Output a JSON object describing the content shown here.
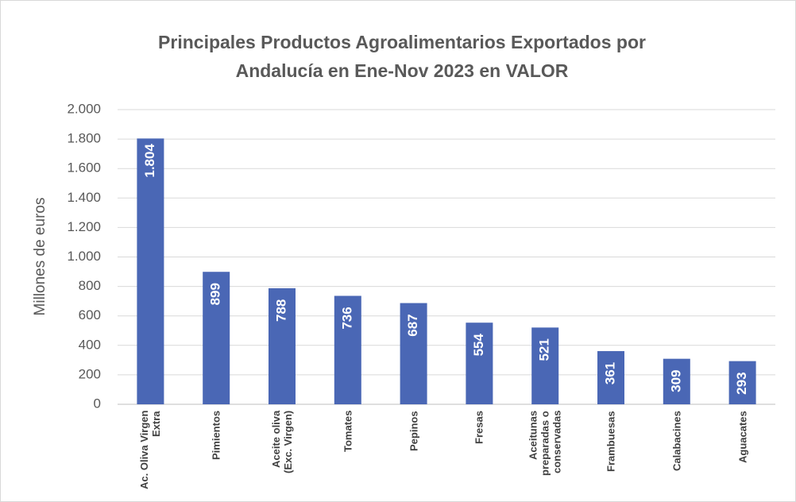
{
  "chart_data": {
    "type": "bar",
    "title": "Principales Productos Agroalimentarios Exportados por Andalucía en Ene-Nov 2023 en VALOR",
    "y_label": "Millones de euros",
    "categories": [
      "Ac. Oliva Virgen Extra",
      "Pimientos",
      "Aceite oliva (Exc. Virgen)",
      "Tomates",
      "Pepinos",
      "Fresas",
      "Aceitunas preparadas o conservadas",
      "Frambuesas",
      "Calabacines",
      "Aguacates"
    ],
    "values": [
      1804,
      899,
      788,
      736,
      687,
      554,
      521,
      361,
      309,
      293
    ],
    "value_labels": [
      "1.804",
      "899",
      "788",
      "736",
      "687",
      "554",
      "521",
      "361",
      "309",
      "293"
    ],
    "color": "#4a67b5",
    "ylim": [
      0,
      2000
    ],
    "yticks": [
      0,
      200,
      400,
      600,
      800,
      {
        "value": 1000,
        "label": "1.000"
      },
      {
        "value": 1200,
        "label": "1.200"
      },
      {
        "value": 1400,
        "label": "1.400"
      },
      {
        "value": 1600,
        "label": "1.600"
      },
      {
        "value": 1800,
        "label": "1.800"
      },
      {
        "value": 2000,
        "label": "2.000"
      }
    ],
    "grid": true
  }
}
